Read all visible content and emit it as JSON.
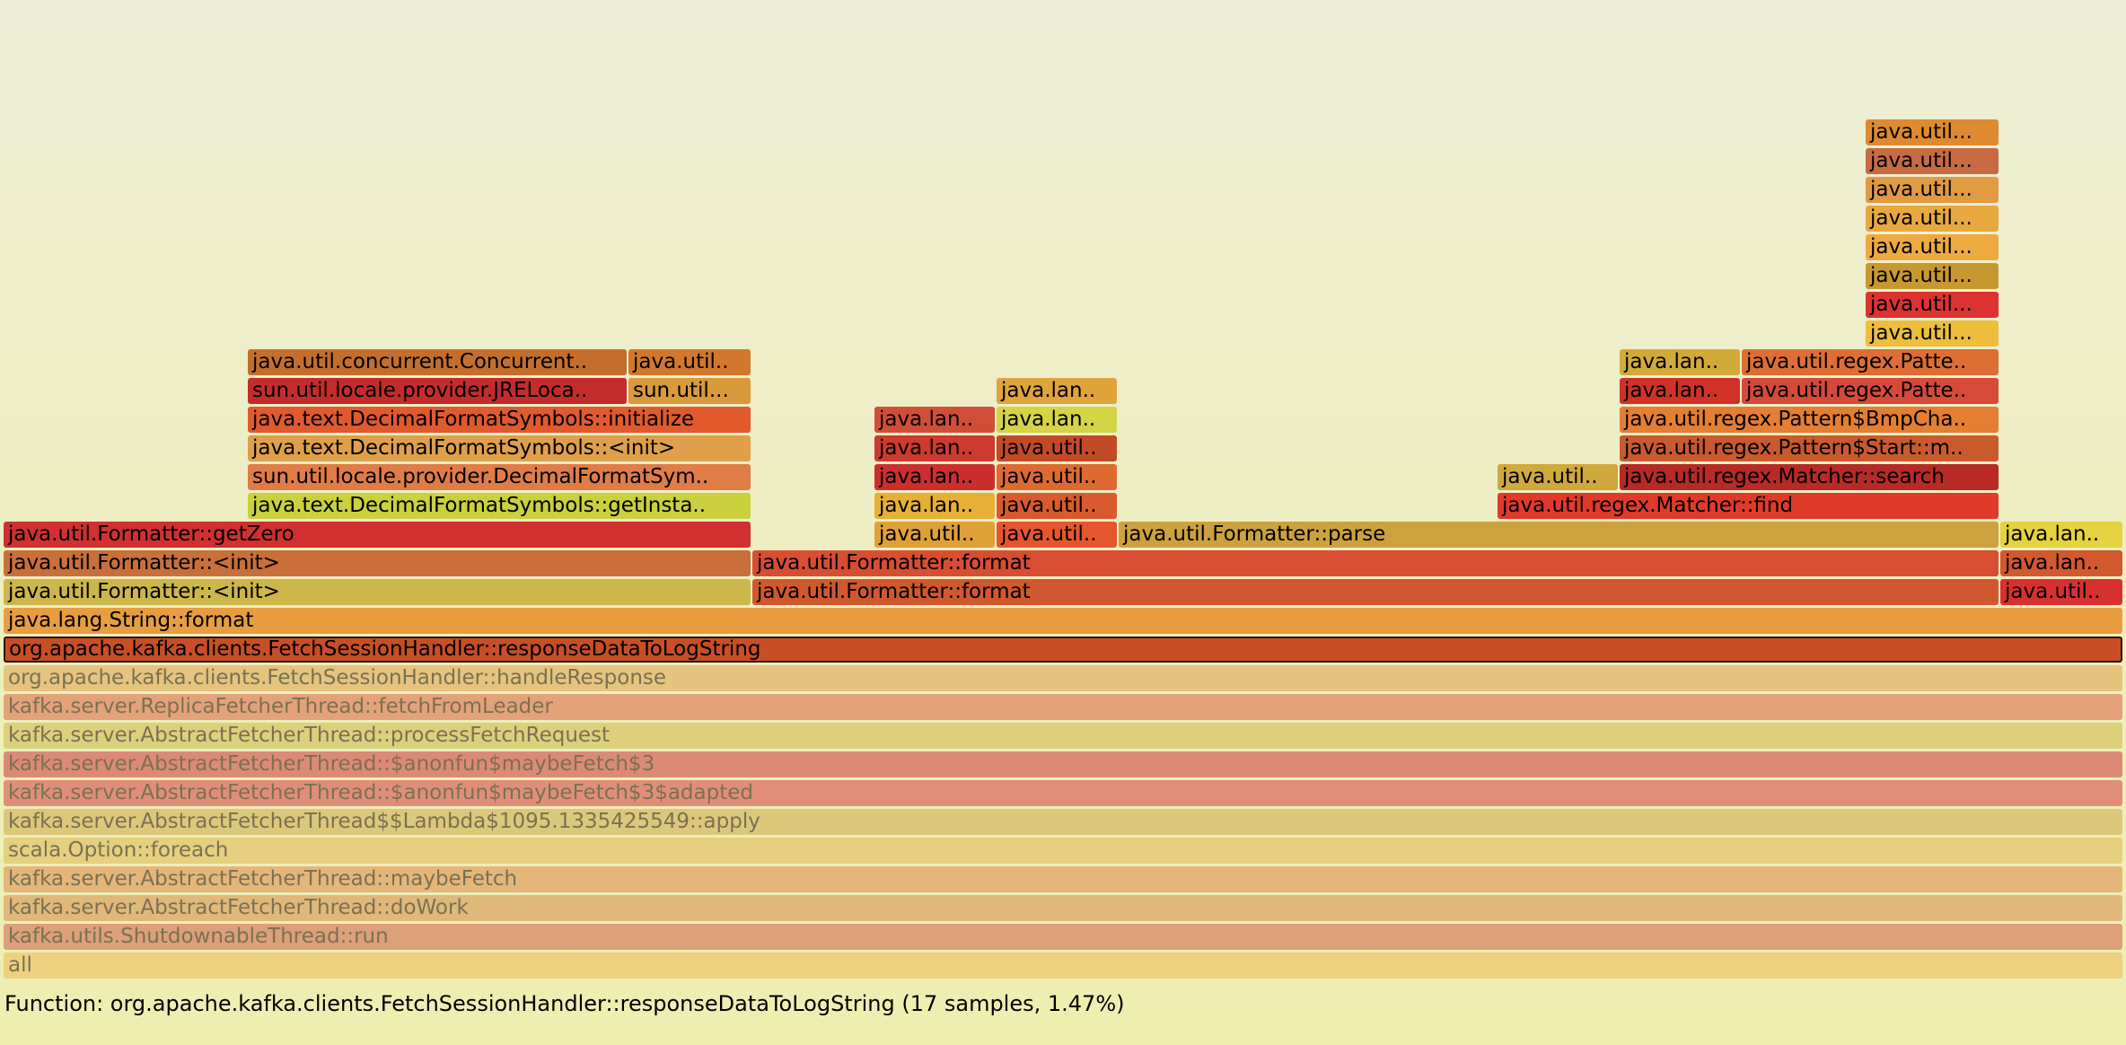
{
  "details": "Function: org.apache.kafka.clients.FetchSessionHandler::responseDataToLogString (17 samples, 1.47%)",
  "colors": {
    "background_top": "#eeeed6",
    "background_bottom": "#eeeeb0",
    "focused_border": "#2a1207"
  },
  "frames": [
    {
      "label": "all",
      "color": "#ecd27e",
      "faded": true
    },
    {
      "label": "kafka.utils.ShutdownableThread::run",
      "color": "#dca07a",
      "faded": true
    },
    {
      "label": "kafka.server.AbstractFetcherThread::doWork",
      "color": "#e0b87a",
      "faded": true
    },
    {
      "label": "kafka.server.AbstractFetcherThread::maybeFetch",
      "color": "#e4b67a",
      "faded": true
    },
    {
      "label": "scala.Option::foreach",
      "color": "#e4d07e",
      "faded": true
    },
    {
      "label": "kafka.server.AbstractFetcherThread$$Lambda$1095.1335425549::apply",
      "color": "#dcc87a",
      "faded": true
    },
    {
      "label": "kafka.server.AbstractFetcherThread::$anonfun$maybeFetch$3$adapted",
      "color": "#e08e7a",
      "faded": true
    },
    {
      "label": "kafka.server.AbstractFetcherThread::$anonfun$maybeFetch$3",
      "color": "#dc8a78",
      "faded": true
    },
    {
      "label": "kafka.server.AbstractFetcherThread::processFetchRequest",
      "color": "#dcd07c",
      "faded": true
    },
    {
      "label": "kafka.server.ReplicaFetcherThread::fetchFromLeader",
      "color": "#e4a27a",
      "faded": true
    },
    {
      "label": "org.apache.kafka.clients.FetchSessionHandler::handleResponse",
      "color": "#e4c47e",
      "faded": true
    },
    {
      "label": "org.apache.kafka.clients.FetchSessionHandler::responseDataToLogString",
      "color": "#c84e26",
      "focused": true
    },
    {
      "label": "java.lang.String::format",
      "color": "#e89e40"
    },
    {
      "label": "java.util.Formatter::<init>",
      "color": "#cdb64a"
    },
    {
      "label": "java.util.Formatter::<init>",
      "color": "#c96f3a"
    },
    {
      "label": "java.util.Formatter::getZero",
      "color": "#d03030"
    },
    {
      "label": "java.text.DecimalFormatSymbols::getInsta..",
      "color": "#cad03e"
    },
    {
      "label": "sun.util.locale.provider.DecimalFormatSym..",
      "color": "#e07c46"
    },
    {
      "label": "java.text.DecimalFormatSymbols::<init>",
      "color": "#dea04a"
    },
    {
      "label": "java.text.DecimalFormatSymbols::initialize",
      "color": "#e05a2e"
    },
    {
      "label": "sun.util.locale.provider.JRELoca..",
      "color": "#c42c2c"
    },
    {
      "label": "java.util.concurrent.Concurrent..",
      "color": "#c46e2e"
    },
    {
      "label": "sun.util...",
      "color": "#d89a3a"
    },
    {
      "label": "java.util..",
      "color": "#d2782e"
    },
    {
      "label": "java.util.Formatter::format",
      "color": "#d0582e"
    },
    {
      "label": "java.util.Formatter::format",
      "color": "#d84e32"
    },
    {
      "label": "java.util..",
      "color": "#e0a038"
    },
    {
      "label": "java.lan..",
      "color": "#e6b036"
    },
    {
      "label": "java.lan..",
      "color": "#cc2e2e"
    },
    {
      "label": "java.lan..",
      "color": "#cc3a30"
    },
    {
      "label": "java.lan..",
      "color": "#d04e38"
    },
    {
      "label": "java.util..",
      "color": "#e6562e"
    },
    {
      "label": "java.util..",
      "color": "#d85a2e"
    },
    {
      "label": "java.util..",
      "color": "#de6a32"
    },
    {
      "label": "java.util..",
      "color": "#c24a26"
    },
    {
      "label": "java.lan..",
      "color": "#d4d446"
    },
    {
      "label": "java.lan..",
      "color": "#e0a43c"
    },
    {
      "label": "java.util.Formatter::parse",
      "color": "#cca23e"
    },
    {
      "label": "java.util.regex.Matcher::find",
      "color": "#e03a2a"
    },
    {
      "label": "java.util..",
      "color": "#d0a83c"
    },
    {
      "label": "java.util.regex.Matcher::search",
      "color": "#b82a26"
    },
    {
      "label": "java.util.regex.Pattern$Start::m..",
      "color": "#c85a2e"
    },
    {
      "label": "java.util.regex.Pattern$BmpCha..",
      "color": "#e47e32"
    },
    {
      "label": "java.lan..",
      "color": "#d03228"
    },
    {
      "label": "java.util.regex.Patte..",
      "color": "#d64a3a"
    },
    {
      "label": "java.lan..",
      "color": "#d2aa3a"
    },
    {
      "label": "java.util.regex.Patte..",
      "color": "#dc6e36"
    },
    {
      "label": "java.util...",
      "color": "#eebe3c"
    },
    {
      "label": "java.util...",
      "color": "#dc3232"
    },
    {
      "label": "java.util...",
      "color": "#c89830"
    },
    {
      "label": "java.util...",
      "color": "#ecaa40"
    },
    {
      "label": "java.util...",
      "color": "#e8a840"
    },
    {
      "label": "java.util...",
      "color": "#e09a42"
    },
    {
      "label": "java.util...",
      "color": "#c86a42"
    },
    {
      "label": "java.util...",
      "color": "#de8a30"
    },
    {
      "label": "java.util..",
      "color": "#d83030"
    },
    {
      "label": "java.lan..",
      "color": "#d2582e"
    },
    {
      "label": "java.lan..",
      "color": "#e4d240"
    }
  ]
}
